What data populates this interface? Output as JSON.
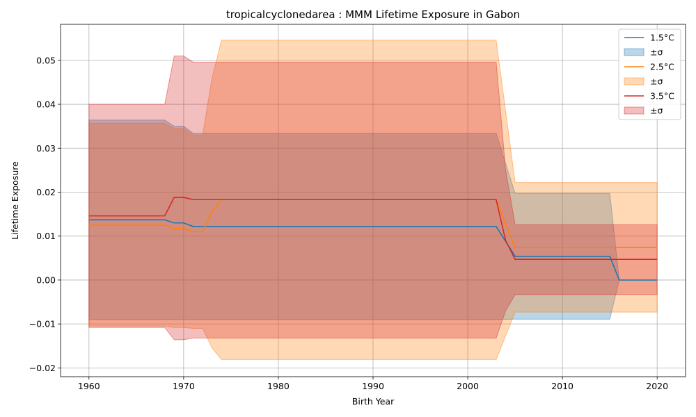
{
  "chart_data": {
    "type": "area",
    "title": "tropicalcyclonedarea : MMM Lifetime Exposure in Gabon",
    "xlabel": "Birth Year",
    "ylabel": "Lifetime Exposure",
    "xlim": [
      1957,
      2023
    ],
    "ylim": [
      -0.022,
      0.0582
    ],
    "xticks": [
      1960,
      1970,
      1980,
      1990,
      2000,
      2010,
      2020
    ],
    "xtick_labels": [
      "1960",
      "1970",
      "1980",
      "1990",
      "2000",
      "2010",
      "2020"
    ],
    "yticks": [
      -0.02,
      -0.01,
      0.0,
      0.01,
      0.02,
      0.03,
      0.04,
      0.05
    ],
    "ytick_labels": [
      "−0.02",
      "−0.01",
      "0.00",
      "0.01",
      "0.02",
      "0.03",
      "0.04",
      "0.05"
    ],
    "grid": true,
    "legend_position": "top-right",
    "series": [
      {
        "name": "1.5°C",
        "band_name": "±σ",
        "color": "#1f77b4",
        "band_color": "#1f77b4",
        "band_opacity": 0.3,
        "x": [
          1960,
          1968,
          1969,
          1970,
          1971,
          1972,
          2003,
          2005,
          2015,
          2016,
          2020
        ],
        "mean": [
          0.0137,
          0.0137,
          0.013,
          0.013,
          0.0122,
          0.0122,
          0.0122,
          0.0054,
          0.0054,
          0.0,
          0.0
        ],
        "upper": [
          0.0364,
          0.0364,
          0.035,
          0.035,
          0.0334,
          0.0334,
          0.0334,
          0.0197,
          0.0197,
          0.0,
          0.0
        ],
        "lower": [
          -0.009,
          -0.009,
          -0.009,
          -0.009,
          -0.009,
          -0.009,
          -0.009,
          -0.0089,
          -0.0089,
          0.0,
          0.0
        ]
      },
      {
        "name": "2.5°C",
        "band_name": "±σ",
        "color": "#ff7f0e",
        "band_color": "#ff7f0e",
        "band_opacity": 0.3,
        "x": [
          1960,
          1968,
          1969,
          1970,
          1971,
          1972,
          1973,
          1974,
          2003,
          2005,
          2020
        ],
        "mean": [
          0.0125,
          0.0125,
          0.0117,
          0.0117,
          0.011,
          0.011,
          0.0155,
          0.0183,
          0.0183,
          0.0074,
          0.0074
        ],
        "upper": [
          0.0357,
          0.0357,
          0.0345,
          0.0345,
          0.033,
          0.033,
          0.046,
          0.0546,
          0.0546,
          0.0222,
          0.0222
        ],
        "lower": [
          -0.0105,
          -0.0105,
          -0.0108,
          -0.0108,
          -0.011,
          -0.011,
          -0.0155,
          -0.0181,
          -0.0181,
          -0.0073,
          -0.0073
        ]
      },
      {
        "name": "3.5°C",
        "band_name": "±σ",
        "color": "#d62728",
        "band_color": "#d62728",
        "band_opacity": 0.3,
        "x": [
          1960,
          1968,
          1969,
          1970,
          1971,
          2003,
          2004,
          2005,
          2020
        ],
        "mean": [
          0.0146,
          0.0146,
          0.0188,
          0.0188,
          0.0183,
          0.0183,
          0.009,
          0.0047,
          0.0047
        ],
        "upper": [
          0.04,
          0.04,
          0.051,
          0.051,
          0.0496,
          0.0496,
          0.025,
          0.0126,
          0.0126
        ],
        "lower": [
          -0.0108,
          -0.0108,
          -0.0136,
          -0.0136,
          -0.0132,
          -0.0132,
          -0.007,
          -0.0033,
          -0.0033
        ]
      }
    ]
  }
}
